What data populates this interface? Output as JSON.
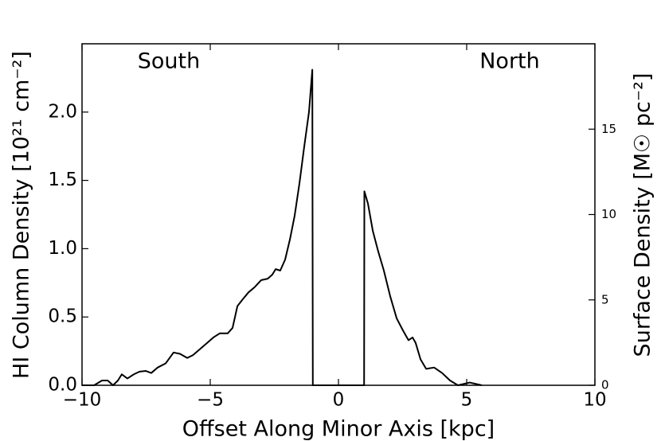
{
  "chart_data": {
    "type": "line",
    "xlabel": "Offset Along Minor Axis [kpc]",
    "ylabel": "HI Column Density [10²¹ cm⁻²]",
    "y2label": "Surface Density [M☉ pc⁻²]",
    "annotations": [
      "South",
      "North"
    ],
    "x": [
      -10,
      -9.53,
      -9.22,
      -9.0,
      -8.79,
      -8.6,
      -8.45,
      -8.23,
      -7.98,
      -7.76,
      -7.52,
      -7.3,
      -7.05,
      -6.74,
      -6.43,
      -6.18,
      -5.9,
      -5.68,
      -5.43,
      -5.12,
      -4.88,
      -4.63,
      -4.32,
      -4.13,
      -3.94,
      -3.73,
      -3.51,
      -3.26,
      -3.01,
      -2.76,
      -2.58,
      -2.45,
      -2.27,
      -2.08,
      -1.89,
      -1.71,
      -1.52,
      -1.34,
      -1.15,
      -1.02,
      -1.0,
      1.0,
      1.01,
      1.15,
      1.34,
      1.55,
      1.77,
      2.02,
      2.27,
      2.52,
      2.73,
      2.89,
      3.01,
      3.2,
      3.42,
      3.73,
      4.04,
      4.35,
      4.66,
      5.12,
      5.59
    ],
    "series": [
      {
        "name": "HI",
        "color": "#000000",
        "values": [
          0,
          0,
          0.035,
          0.035,
          0,
          0.035,
          0.08,
          0.05,
          0.08,
          0.1,
          0.105,
          0.09,
          0.13,
          0.16,
          0.24,
          0.23,
          0.2,
          0.22,
          0.26,
          0.31,
          0.35,
          0.38,
          0.38,
          0.42,
          0.58,
          0.63,
          0.68,
          0.72,
          0.77,
          0.78,
          0.81,
          0.85,
          0.84,
          0.92,
          1.07,
          1.24,
          1.48,
          1.74,
          2.0,
          2.31,
          0,
          0,
          1.42,
          1.33,
          1.13,
          0.98,
          0.84,
          0.65,
          0.49,
          0.4,
          0.33,
          0.35,
          0.31,
          0.19,
          0.12,
          0.13,
          0.09,
          0.035,
          0,
          0.02,
          0
        ]
      }
    ],
    "xlim": [
      -10,
      10
    ],
    "xticks": [
      {
        "value": -10,
        "label": "−10"
      },
      {
        "value": -5,
        "label": "−5"
      },
      0,
      5,
      10
    ],
    "ylim": [
      0,
      2.5
    ],
    "yticks": [
      {
        "value": 0,
        "label": "0.0"
      },
      0.5,
      {
        "value": 1,
        "label": "1.0"
      },
      1.5,
      {
        "value": 2,
        "label": "2.0"
      }
    ],
    "y2lim": [
      0,
      20
    ],
    "y2ticks": [
      0,
      5,
      10,
      15
    ]
  }
}
